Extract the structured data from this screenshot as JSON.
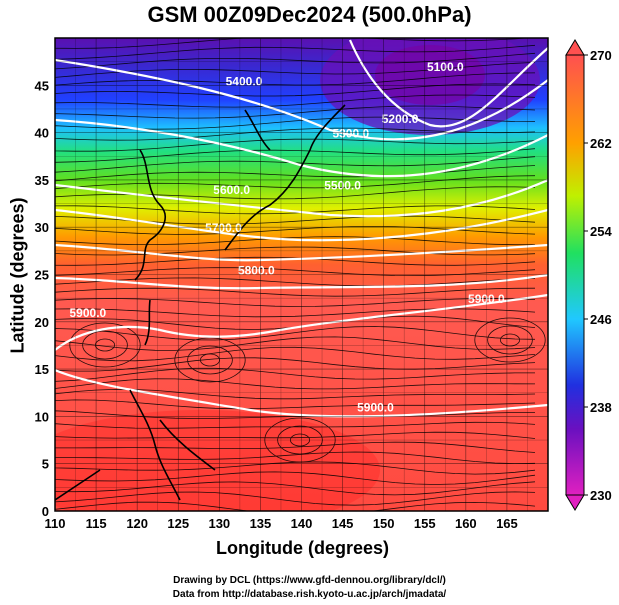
{
  "title": "GSM 00Z09Dec2024 (500.0hPa)",
  "credits": {
    "line1": "Drawing by DCL (https://www.gfd-dennou.org/library/dcl/)",
    "line2": "Data from http://database.rish.kyoto-u.ac.jp/arch/jmadata/"
  },
  "chart_data": {
    "type": "heatmap",
    "xlabel": "Longitude (degrees)",
    "ylabel": "Latitude  (degrees)",
    "xlim": [
      110,
      170
    ],
    "ylim": [
      0,
      50
    ],
    "x_ticks": [
      110,
      115,
      120,
      125,
      130,
      135,
      140,
      145,
      150,
      155,
      160,
      165
    ],
    "y_ticks": [
      0,
      5,
      10,
      15,
      20,
      25,
      30,
      35,
      40,
      45
    ],
    "colorbar": {
      "min": 230,
      "max": 270,
      "ticks": [
        230,
        238,
        246,
        254,
        262,
        270
      ]
    },
    "temperature_bands": [
      {
        "lat_top": 50,
        "lat_bottom": 42,
        "value": 236
      },
      {
        "lat_top": 42,
        "lat_bottom": 38,
        "value": 244
      },
      {
        "lat_top": 38,
        "lat_bottom": 34,
        "value": 251
      },
      {
        "lat_top": 34,
        "lat_bottom": 30,
        "value": 257
      },
      {
        "lat_top": 30,
        "lat_bottom": 27,
        "value": 262
      },
      {
        "lat_top": 27,
        "lat_bottom": 0,
        "value": 268
      }
    ],
    "contour_labels": [
      {
        "text": "5100.0",
        "lon": 157.5,
        "lat": 46.5
      },
      {
        "text": "5200.0",
        "lon": 152.0,
        "lat": 41.0
      },
      {
        "text": "5300.0",
        "lon": 146.0,
        "lat": 39.5
      },
      {
        "text": "5400.0",
        "lon": 133.0,
        "lat": 45.0
      },
      {
        "text": "5500.0",
        "lon": 145.0,
        "lat": 34.0
      },
      {
        "text": "5600.0",
        "lon": 131.5,
        "lat": 33.5
      },
      {
        "text": "5700.0",
        "lon": 130.5,
        "lat": 29.5
      },
      {
        "text": "5800.0",
        "lon": 134.5,
        "lat": 25.0
      },
      {
        "text": "5900.0",
        "lon": 114.0,
        "lat": 20.5
      },
      {
        "text": "5900.0",
        "lon": 162.5,
        "lat": 22.0
      },
      {
        "text": "5900.0",
        "lon": 149.0,
        "lat": 10.5
      }
    ]
  },
  "colors": {
    "cold": "#6a00b8",
    "cool": "#1a3cff",
    "mid": "#20d060",
    "warm": "#ff9a00",
    "hot": "#ff5a50"
  }
}
